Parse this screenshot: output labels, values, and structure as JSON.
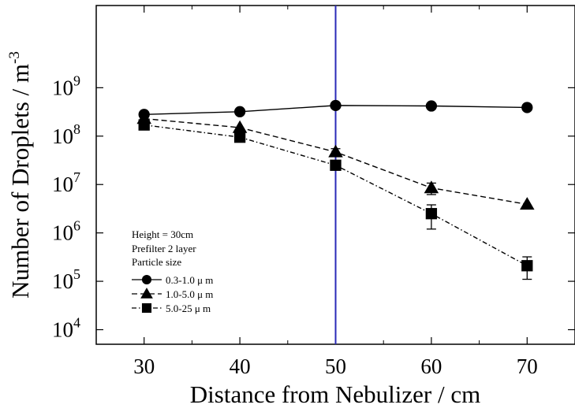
{
  "chart_data": {
    "type": "line",
    "xlabel": "Distance from Nebulizer / cm",
    "ylabel": "Number of Droplets / m",
    "ylabel_superscript": "-3",
    "x_ticks": [
      "30",
      "40",
      "50",
      "60",
      "70"
    ],
    "xlim": [
      25,
      75
    ],
    "yscale": "log",
    "ylim": [
      5000,
      50000000000
    ],
    "y_ticks": [
      {
        "value": 10000,
        "base": "10",
        "exp": "4"
      },
      {
        "value": 100000,
        "base": "10",
        "exp": "5"
      },
      {
        "value": 1000000,
        "base": "10",
        "exp": "6"
      },
      {
        "value": 10000000,
        "base": "10",
        "exp": "7"
      },
      {
        "value": 100000000,
        "base": "10",
        "exp": "8"
      },
      {
        "value": 1000000000,
        "base": "10",
        "exp": "9"
      }
    ],
    "vertical_line": {
      "x": 50,
      "color": "#2a2ab8"
    },
    "annotations": [
      "Height = 30cm",
      "Prefilter 2 layer",
      "Particle size"
    ],
    "series": [
      {
        "name": "0.3-1.0 μ m",
        "marker": "circle",
        "line_style": "solid",
        "x": [
          30,
          40,
          50,
          60,
          70
        ],
        "y": [
          280000000,
          320000000,
          430000000,
          420000000,
          390000000
        ],
        "err_low": [
          null,
          null,
          null,
          null,
          null
        ],
        "err_high": [
          null,
          null,
          null,
          null,
          null
        ]
      },
      {
        "name": "1.0-5.0 μ m",
        "marker": "triangle",
        "line_style": "dashed",
        "x": [
          30,
          40,
          50,
          60,
          70
        ],
        "y": [
          230000000,
          150000000,
          47000000,
          8500000,
          3900000
        ],
        "err_low": [
          null,
          null,
          40000000,
          6200000,
          null
        ],
        "err_high": [
          null,
          null,
          55000000,
          10700000,
          null
        ]
      },
      {
        "name": "5.0-25 μ m",
        "marker": "square",
        "line_style": "dashdot",
        "x": [
          30,
          40,
          50,
          60,
          70
        ],
        "y": [
          170000000,
          95000000,
          25000000,
          2500000,
          210000
        ],
        "err_low": [
          null,
          null,
          null,
          1200000,
          110000
        ],
        "err_high": [
          null,
          null,
          null,
          3800000,
          320000
        ]
      }
    ]
  }
}
